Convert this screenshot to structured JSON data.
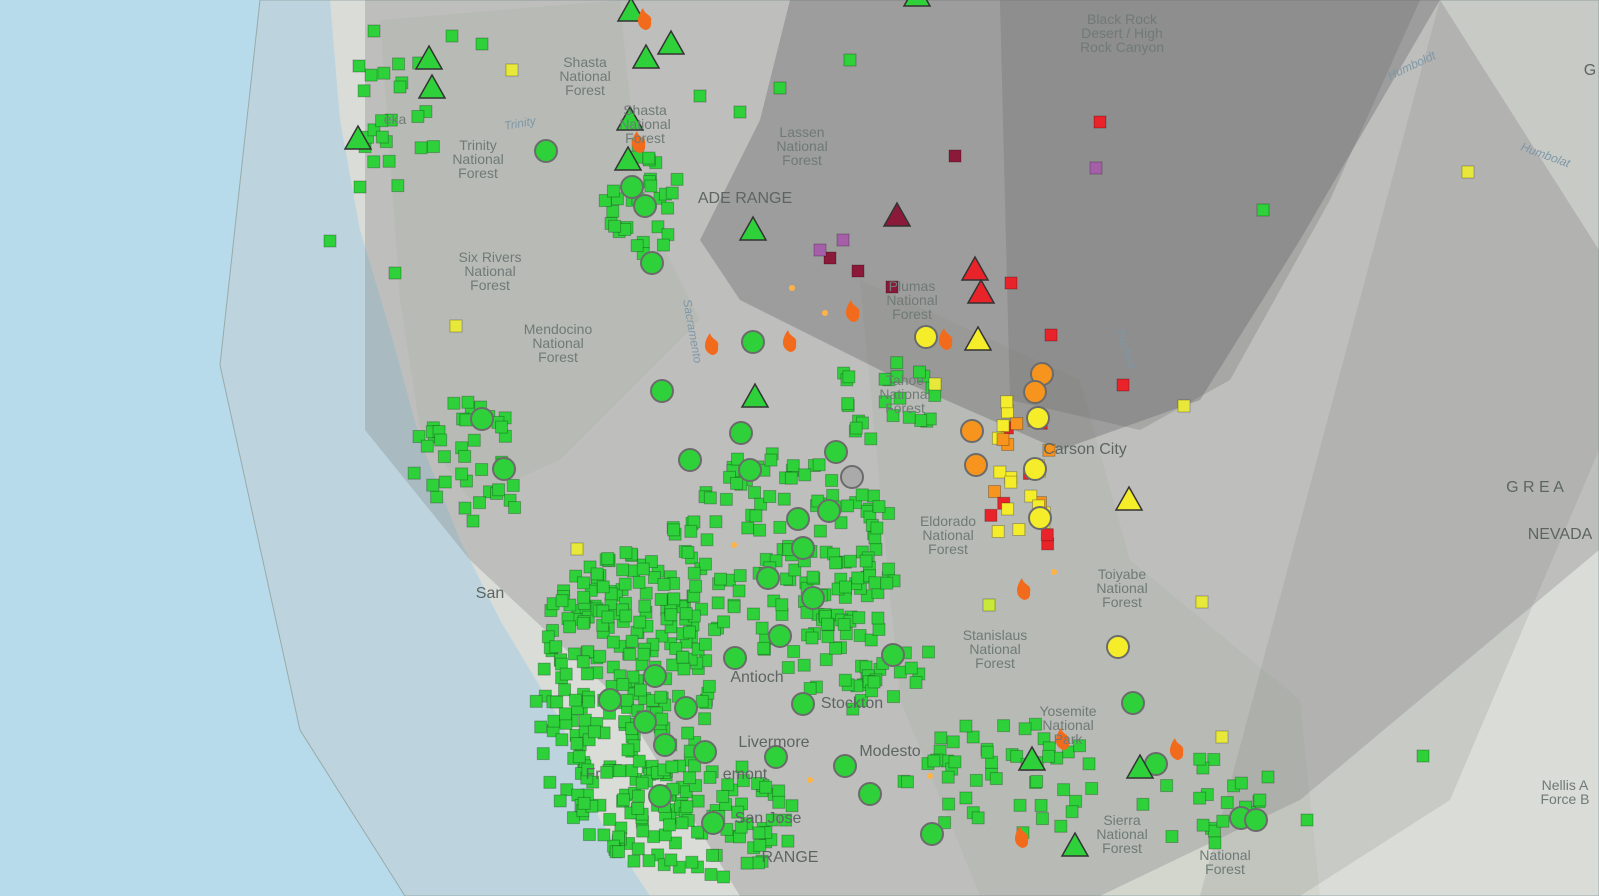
{
  "labels": [
    {
      "lines": [
        "Black Rock",
        "Desert / High",
        "Rock Canyon"
      ]
    },
    {
      "lines": [
        "Shasta",
        "National",
        "Forest"
      ]
    },
    {
      "lines": [
        "Shasta",
        "National",
        "Forest"
      ]
    },
    {
      "lines": [
        "eka"
      ]
    },
    {
      "lines": [
        "Trinity",
        "National",
        "Forest"
      ]
    },
    {
      "lines": [
        "Lassen",
        "National",
        "Forest"
      ]
    },
    {
      "lines": [
        "ADE RANGE"
      ]
    },
    {
      "lines": [
        "Six Rivers",
        "National",
        "Forest"
      ]
    },
    {
      "lines": [
        "Mendocino",
        "National",
        "Forest"
      ]
    },
    {
      "lines": [
        "Plumas",
        "National",
        "Forest"
      ]
    },
    {
      "lines": [
        "Tahoe",
        "National",
        "Forest"
      ]
    },
    {
      "lines": [
        "Carson City"
      ]
    },
    {
      "lines": [
        "Eldorado",
        "National",
        "Forest"
      ]
    },
    {
      "lines": [
        "Toiyabe",
        "National",
        "Forest"
      ]
    },
    {
      "lines": [
        "Stanislaus",
        "National",
        "Forest"
      ]
    },
    {
      "lines": [
        "Yosemite",
        "National",
        "Park"
      ]
    },
    {
      "lines": [
        "Sierra",
        "National",
        "Forest"
      ]
    },
    {
      "lines": [
        "National",
        "Forest"
      ]
    },
    {
      "lines": [
        "Antioch"
      ]
    },
    {
      "lines": [
        "Stockton"
      ]
    },
    {
      "lines": [
        "Livermore"
      ]
    },
    {
      "lines": [
        "Modesto"
      ]
    },
    {
      "lines": [
        "San Jose"
      ]
    },
    {
      "lines": [
        "Fr"
      ]
    },
    {
      "lines": [
        "emont"
      ]
    },
    {
      "lines": [
        "San"
      ]
    },
    {
      "lines": [
        "G R E A"
      ]
    },
    {
      "lines": [
        "NEVADA"
      ]
    },
    {
      "lines": [
        "Nellis A",
        "Force B"
      ]
    },
    {
      "lines": [
        "RANGE"
      ]
    },
    {
      "lines": [
        "Humboldt"
      ]
    },
    {
      "lines": [
        "Humbolat"
      ]
    },
    {
      "lines": [
        "Trinity"
      ]
    },
    {
      "lines": [
        "Sacramento"
      ]
    },
    {
      "lines": [
        "Truckee"
      ]
    },
    {
      "lines": [
        "G"
      ]
    }
  ]
}
